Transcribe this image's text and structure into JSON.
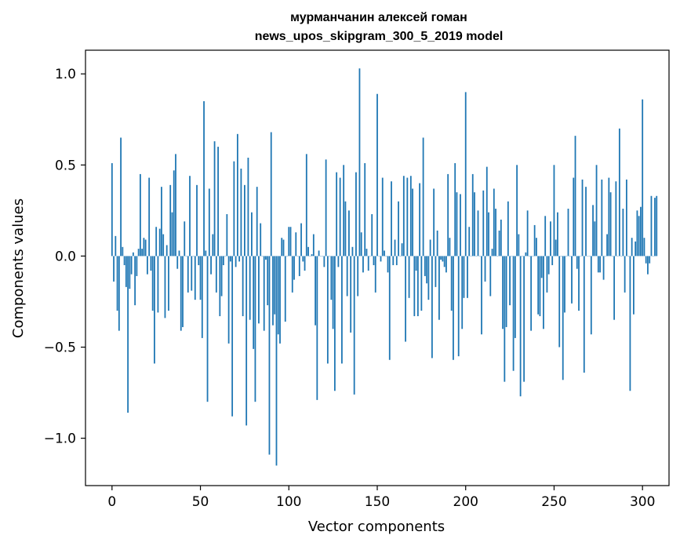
{
  "chart_data": {
    "type": "bar",
    "title": "мурманчанин алексей гоман",
    "subtitle": "news_upos_skipgram_300_5_2019 model",
    "xlabel": "Vector components",
    "ylabel": "Components values",
    "xlim": [
      -15,
      315
    ],
    "ylim": [
      -1.26,
      1.13
    ],
    "xticks": [
      0,
      50,
      100,
      150,
      200,
      250,
      300
    ],
    "yticks": [
      -1.0,
      -0.5,
      0.0,
      0.5,
      1.0
    ],
    "ytick_labels": [
      "−1.0",
      "−0.5",
      "0.0",
      "0.5",
      "1.0"
    ],
    "grid": false,
    "bar_color": "#1f77b4",
    "x_start": 0,
    "values": [
      0.51,
      -0.14,
      0.11,
      -0.3,
      -0.41,
      0.65,
      0.05,
      -0.05,
      -0.17,
      -0.86,
      -0.18,
      -0.1,
      0.02,
      -0.27,
      -0.11,
      0.04,
      0.45,
      0.04,
      0.1,
      0.09,
      -0.1,
      0.43,
      -0.08,
      -0.3,
      -0.59,
      0.16,
      -0.31,
      0.15,
      0.38,
      0.12,
      -0.34,
      0.06,
      -0.3,
      0.39,
      0.24,
      0.47,
      0.56,
      -0.07,
      0.03,
      -0.41,
      -0.39,
      0.19,
      0.0,
      -0.2,
      0.44,
      -0.19,
      0.0,
      -0.24,
      0.39,
      -0.05,
      -0.24,
      -0.45,
      0.85,
      0.03,
      -0.8,
      0.37,
      -0.1,
      0.12,
      0.63,
      -0.2,
      0.6,
      -0.33,
      -0.22,
      -0.05,
      0.0,
      0.23,
      -0.48,
      -0.03,
      -0.88,
      0.52,
      -0.06,
      0.67,
      -0.03,
      0.48,
      -0.33,
      0.39,
      -0.93,
      0.54,
      -0.35,
      0.24,
      -0.51,
      -0.8,
      0.38,
      -0.37,
      0.18,
      0.0,
      -0.41,
      -0.02,
      -0.27,
      -1.09,
      0.68,
      -0.38,
      -0.32,
      -1.15,
      -0.43,
      -0.48,
      0.1,
      0.09,
      -0.36,
      0.0,
      0.16,
      0.16,
      -0.2,
      -0.13,
      0.13,
      0.0,
      -0.11,
      0.18,
      -0.03,
      -0.08,
      0.56,
      0.05,
      0.0,
      0.01,
      0.12,
      -0.38,
      -0.79,
      0.03,
      0.0,
      0.0,
      -0.06,
      0.53,
      -0.59,
      0.0,
      -0.24,
      -0.4,
      -0.74,
      0.46,
      -0.06,
      0.43,
      -0.59,
      0.5,
      0.3,
      -0.22,
      0.25,
      -0.42,
      0.05,
      -0.76,
      0.46,
      -0.22,
      1.03,
      0.13,
      -0.09,
      0.51,
      0.04,
      -0.08,
      0.0,
      0.23,
      -0.05,
      -0.2,
      0.89,
      0.0,
      -0.03,
      0.43,
      0.03,
      0.0,
      -0.09,
      -0.57,
      0.41,
      -0.05,
      0.09,
      -0.05,
      0.3,
      0.0,
      0.07,
      0.44,
      -0.47,
      0.43,
      -0.23,
      0.44,
      0.37,
      -0.33,
      -0.08,
      -0.33,
      0.4,
      -0.3,
      0.65,
      -0.11,
      -0.15,
      -0.24,
      0.09,
      -0.56,
      0.37,
      -0.17,
      0.14,
      -0.35,
      -0.02,
      -0.03,
      -0.06,
      -0.09,
      0.45,
      0.1,
      -0.3,
      -0.57,
      0.51,
      0.35,
      -0.55,
      0.34,
      -0.4,
      -0.23,
      0.9,
      -0.23,
      0.16,
      0.0,
      0.45,
      0.35,
      0.0,
      0.25,
      0.0,
      -0.43,
      0.36,
      -0.14,
      0.49,
      0.24,
      -0.22,
      0.04,
      0.37,
      0.26,
      0.0,
      0.14,
      0.2,
      -0.4,
      -0.69,
      -0.39,
      0.3,
      -0.27,
      0.0,
      -0.63,
      -0.45,
      0.5,
      0.12,
      -0.77,
      0.0,
      -0.69,
      0.02,
      0.25,
      0.0,
      -0.41,
      0.0,
      0.17,
      0.1,
      -0.32,
      -0.33,
      -0.12,
      -0.4,
      0.22,
      -0.2,
      -0.1,
      0.19,
      -0.05,
      0.5,
      0.09,
      0.24,
      -0.5,
      0.0,
      -0.68,
      -0.31,
      0.0,
      0.26,
      0.0,
      -0.26,
      0.43,
      0.66,
      -0.07,
      -0.3,
      0.0,
      0.42,
      -0.64,
      0.38,
      0.0,
      0.0,
      -0.43,
      0.28,
      0.19,
      0.5,
      -0.09,
      -0.09,
      0.42,
      -0.13,
      0.0,
      0.12,
      0.43,
      0.35,
      0.0,
      -0.35,
      0.41,
      0.0,
      0.7,
      0.0,
      0.26,
      -0.2,
      0.42,
      0.0,
      -0.74,
      0.1,
      -0.32,
      0.08,
      0.25,
      0.22,
      0.27,
      0.86,
      0.1,
      -0.04,
      -0.1,
      -0.04,
      0.33,
      0.0,
      0.32,
      0.33
    ]
  }
}
